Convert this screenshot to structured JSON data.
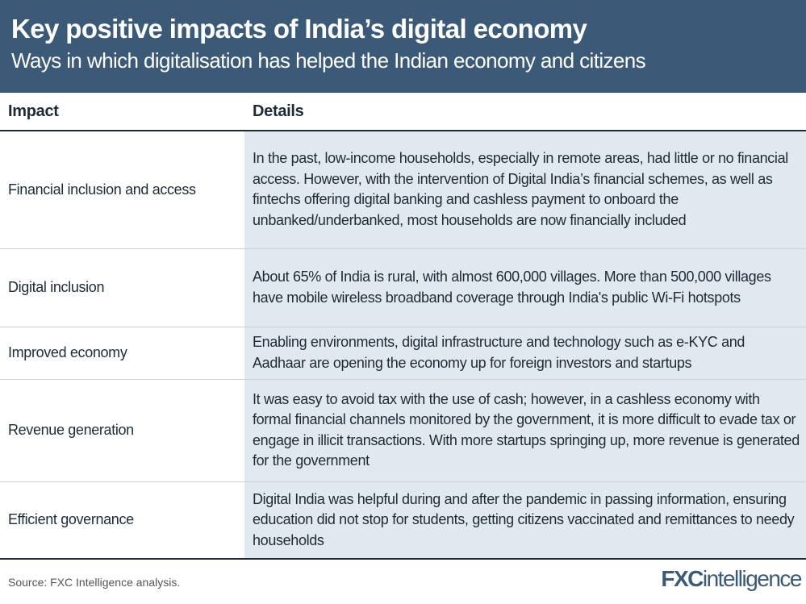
{
  "header": {
    "title": "Key positive impacts of India’s digital economy",
    "subtitle": "Ways in which digitalisation has helped the Indian economy and citizens"
  },
  "table": {
    "columns": [
      "Impact",
      "Details"
    ],
    "rows": [
      {
        "impact": "Financial inclusion and access",
        "details": "In the past, low-income households, especially in remote areas, had little or no financial access. However, with the intervention of Digital India’s financial schemes, as well as fintechs offering digital banking and cashless payment to onboard the unbanked/underbanked, most households are now financially included"
      },
      {
        "impact": "Digital inclusion",
        "details": "About 65% of India is rural, with almost 600,000 villages. More than 500,000 villages have mobile wireless broadband coverage through India's public Wi-Fi hotspots"
      },
      {
        "impact": "Improved economy",
        "details": "Enabling environments, digital infrastructure and technology such as e-KYC and Aadhaar are opening the economy up for foreign investors and startups"
      },
      {
        "impact": "Revenue generation",
        "details": "It was easy to avoid tax with the use of cash; however, in a cashless economy with formal financial channels monitored by the government, it is more difficult to evade tax or engage in illicit transactions. With more startups springing up, more revenue is generated for the government"
      },
      {
        "impact": "Efficient governance",
        "details": "Digital India was helpful during and after the pandemic in passing information, ensuring education did not stop for students, getting citizens vaccinated and remittances to needy households"
      }
    ]
  },
  "footer": {
    "source": "Source: FXC Intelligence analysis.",
    "logo_a": "FXC",
    "logo_b": "intelligence"
  }
}
